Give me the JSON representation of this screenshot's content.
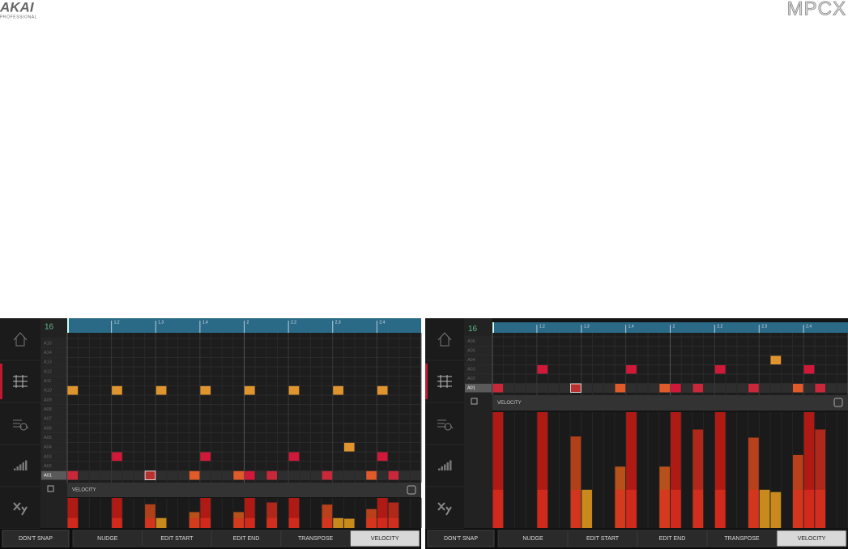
{
  "header": {
    "brand": "AKAI",
    "brand_sub": "PROFESSIONAL",
    "product": "MPCX"
  },
  "screens": [
    {
      "step_count": 16,
      "ruler": [
        "1.2",
        "1.3",
        "1.4",
        "2",
        "2.2",
        "2.3",
        "2.4"
      ],
      "tracks": [
        "A15",
        "A14",
        "A13",
        "A12",
        "A11",
        "A10",
        "A09",
        "A08",
        "A07",
        "A06",
        "A05",
        "A04",
        "A03",
        "A02",
        "A01"
      ],
      "lane_title": "VELOCITY",
      "snap": "DON'T SNAP",
      "tabs": [
        "NUDGE",
        "EDIT START",
        "EDIT END",
        "TRANSPOSE",
        "VELOCITY"
      ]
    },
    {
      "step_count": 16,
      "ruler": [
        "1.2",
        "1.3",
        "1.4",
        "2",
        "2.2",
        "2.3",
        "2.4"
      ],
      "tracks": [
        "A06",
        "A05",
        "A04",
        "A03",
        "A02",
        "A01"
      ],
      "lane_title": "VELOCITY",
      "snap": "DON'T SNAP",
      "tabs": [
        "NUDGE",
        "EDIT START",
        "EDIT END",
        "TRANSPOSE",
        "VELOCITY"
      ]
    }
  ]
}
